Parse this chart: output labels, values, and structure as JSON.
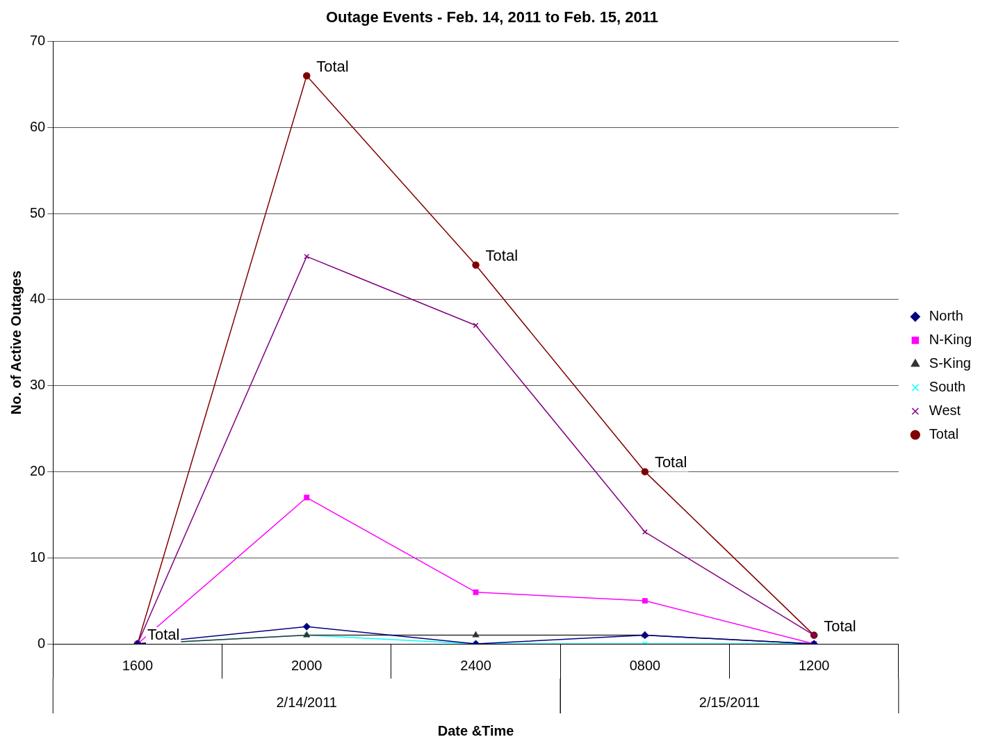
{
  "chart_data": {
    "type": "line",
    "title": "Outage Events - Feb. 14, 2011 to Feb. 15, 2011",
    "xlabel": "Date &Time",
    "ylabel": "No. of Active Outages",
    "categories": [
      "1600",
      "2000",
      "2400",
      "0800",
      "1200"
    ],
    "series": [
      {
        "name": "North",
        "color": "#000080",
        "marker": "diamond",
        "values": [
          0,
          2,
          0,
          1,
          0
        ]
      },
      {
        "name": "N-King",
        "color": "#ff00ff",
        "marker": "square",
        "values": [
          0,
          17,
          6,
          5,
          0
        ]
      },
      {
        "name": "S-King",
        "color": "#333333",
        "marker": "triangle",
        "values": [
          0,
          1,
          1,
          1,
          0
        ]
      },
      {
        "name": "South",
        "color": "#00ffff",
        "marker": "cross",
        "values": [
          0,
          1,
          0,
          0,
          0
        ]
      },
      {
        "name": "West",
        "color": "#800080",
        "marker": "cross",
        "values": [
          0,
          45,
          37,
          13,
          1
        ]
      },
      {
        "name": "Total",
        "color": "#800000",
        "marker": "circle",
        "values": [
          0,
          66,
          44,
          20,
          1
        ]
      }
    ],
    "ylim": [
      0,
      70
    ],
    "yticks": [
      0,
      10,
      20,
      30,
      40,
      50,
      60,
      70
    ],
    "grid": "y",
    "legend": "right",
    "line_style": "solid",
    "annotations": [
      {
        "text": "Total",
        "x": "1600",
        "y": 0
      },
      {
        "text": "Total",
        "x": "2000",
        "y": 66
      },
      {
        "text": "Total",
        "x": "2400",
        "y": 44
      },
      {
        "text": "Total",
        "x": "0800",
        "y": 20
      },
      {
        "text": "Total",
        "x": "1200",
        "y": 1
      },
      "2/14/2011",
      "2/15/2011"
    ]
  }
}
